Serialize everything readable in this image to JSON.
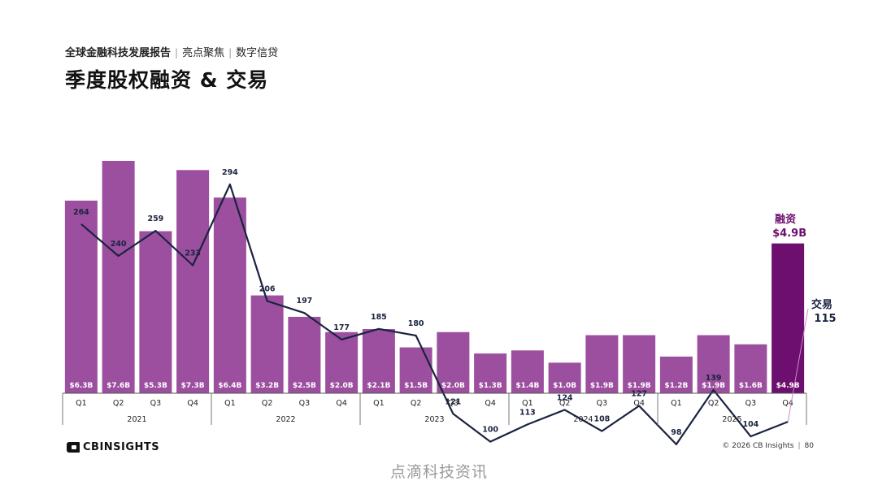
{
  "header": {
    "report": "全球金融科技发展报告",
    "section": "亮点聚焦",
    "topic": "数字信贷",
    "title": "季度股权融资 & 交易"
  },
  "chart_data": {
    "type": "bar",
    "title": "季度股权融资 & 交易",
    "years": [
      "2021",
      "2022",
      "2023",
      "2024",
      "2025"
    ],
    "categories": [
      "Q1",
      "Q2",
      "Q3",
      "Q4",
      "Q1",
      "Q2",
      "Q3",
      "Q4",
      "Q1",
      "Q2",
      "Q3",
      "Q4",
      "Q1",
      "Q2",
      "Q3",
      "Q4",
      "Q1",
      "Q2",
      "Q3",
      "Q4"
    ],
    "series": [
      {
        "name": "融资",
        "type": "bar",
        "values": [
          6.3,
          7.6,
          5.3,
          7.3,
          6.4,
          3.2,
          2.5,
          2.0,
          2.1,
          1.5,
          2.0,
          1.3,
          1.4,
          1.0,
          1.9,
          1.9,
          1.2,
          1.9,
          1.6,
          4.9
        ],
        "labels": [
          "$6.3B",
          "$7.6B",
          "$5.3B",
          "$7.3B",
          "$6.4B",
          "$3.2B",
          "$2.5B",
          "$2.0B",
          "$2.1B",
          "$1.5B",
          "$2.0B",
          "$1.3B",
          "$1.4B",
          "$1.0B",
          "$1.9B",
          "$1.9B",
          "$1.2B",
          "$1.9B",
          "$1.6B",
          "$4.9B"
        ],
        "color": "#9b4f9e",
        "highlight_color": "#6c0f6e"
      },
      {
        "name": "交易",
        "type": "line",
        "values": [
          264,
          240,
          259,
          233,
          294,
          206,
          197,
          177,
          185,
          180,
          121,
          100,
          113,
          124,
          108,
          127,
          98,
          139,
          104,
          115
        ],
        "color": "#1a2340"
      }
    ],
    "callouts": {
      "funding_label": "融资",
      "funding_value": "$4.9B",
      "deals_label": "交易",
      "deals_value": "115"
    },
    "legend": "none",
    "grid": false
  },
  "footer": {
    "brand": "CBINSIGHTS",
    "copyright": "© 2026 CB Insights",
    "page": "80",
    "watermark": "点滴科技资讯"
  },
  "colors": {
    "bar": "#9b4f9e",
    "bar_highlight": "#6c0f6e",
    "line": "#1a2340",
    "callout": "#6c0f6e"
  }
}
